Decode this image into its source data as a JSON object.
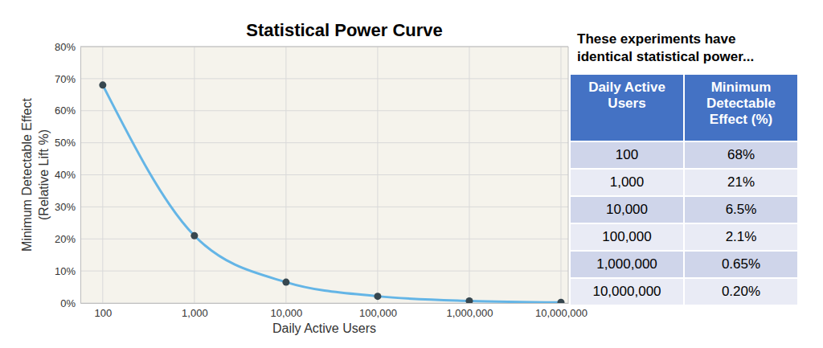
{
  "chart_data": {
    "type": "line",
    "title": "Statistical Power Curve",
    "x_label": "Daily Active Users",
    "y_label": "Minimum Detectable Effect\n(Relative Lift %)",
    "x": [
      100,
      1000,
      10000,
      100000,
      1000000,
      10000000
    ],
    "values": [
      68,
      21,
      6.5,
      2.1,
      0.65,
      0.2
    ],
    "color": "#64b5e6",
    "marker": "circle",
    "line_style": "solid",
    "log": "x",
    "grid": true,
    "xlim": [
      57,
      12000000
    ],
    "xticks": [
      100,
      {
        "value": 1000,
        "label": "1,000"
      },
      {
        "value": 10000,
        "label": "10,000"
      },
      {
        "value": 100000,
        "label": "100,000"
      },
      {
        "value": 1000000,
        "label": "1,000,000"
      },
      {
        "value": 10000000,
        "label": "10,000,000"
      }
    ],
    "ylim": [
      0,
      80
    ],
    "yticks": [
      {
        "value": 0,
        "label": "0%"
      },
      {
        "value": 10,
        "label": "10%"
      },
      {
        "value": 20,
        "label": "20%"
      },
      {
        "value": 30,
        "label": "30%"
      },
      {
        "value": 40,
        "label": "40%"
      },
      {
        "value": 50,
        "label": "50%"
      },
      {
        "value": 60,
        "label": "60%"
      },
      {
        "value": 70,
        "label": "70%"
      },
      {
        "value": 80,
        "label": "80%"
      }
    ]
  },
  "table": {
    "title": "These experiments have\nidentical statistical power...",
    "header": [
      "Daily Active Users",
      "Minimum Detectable Effect (%)"
    ],
    "rows": [
      [
        "100",
        "68%"
      ],
      [
        "1,000",
        "21%"
      ],
      [
        "10,000",
        "6.5%"
      ],
      [
        "100,000",
        "2.1%"
      ],
      [
        "1,000,000",
        "0.65%"
      ],
      [
        "10,000,000",
        "0.20%"
      ]
    ]
  }
}
